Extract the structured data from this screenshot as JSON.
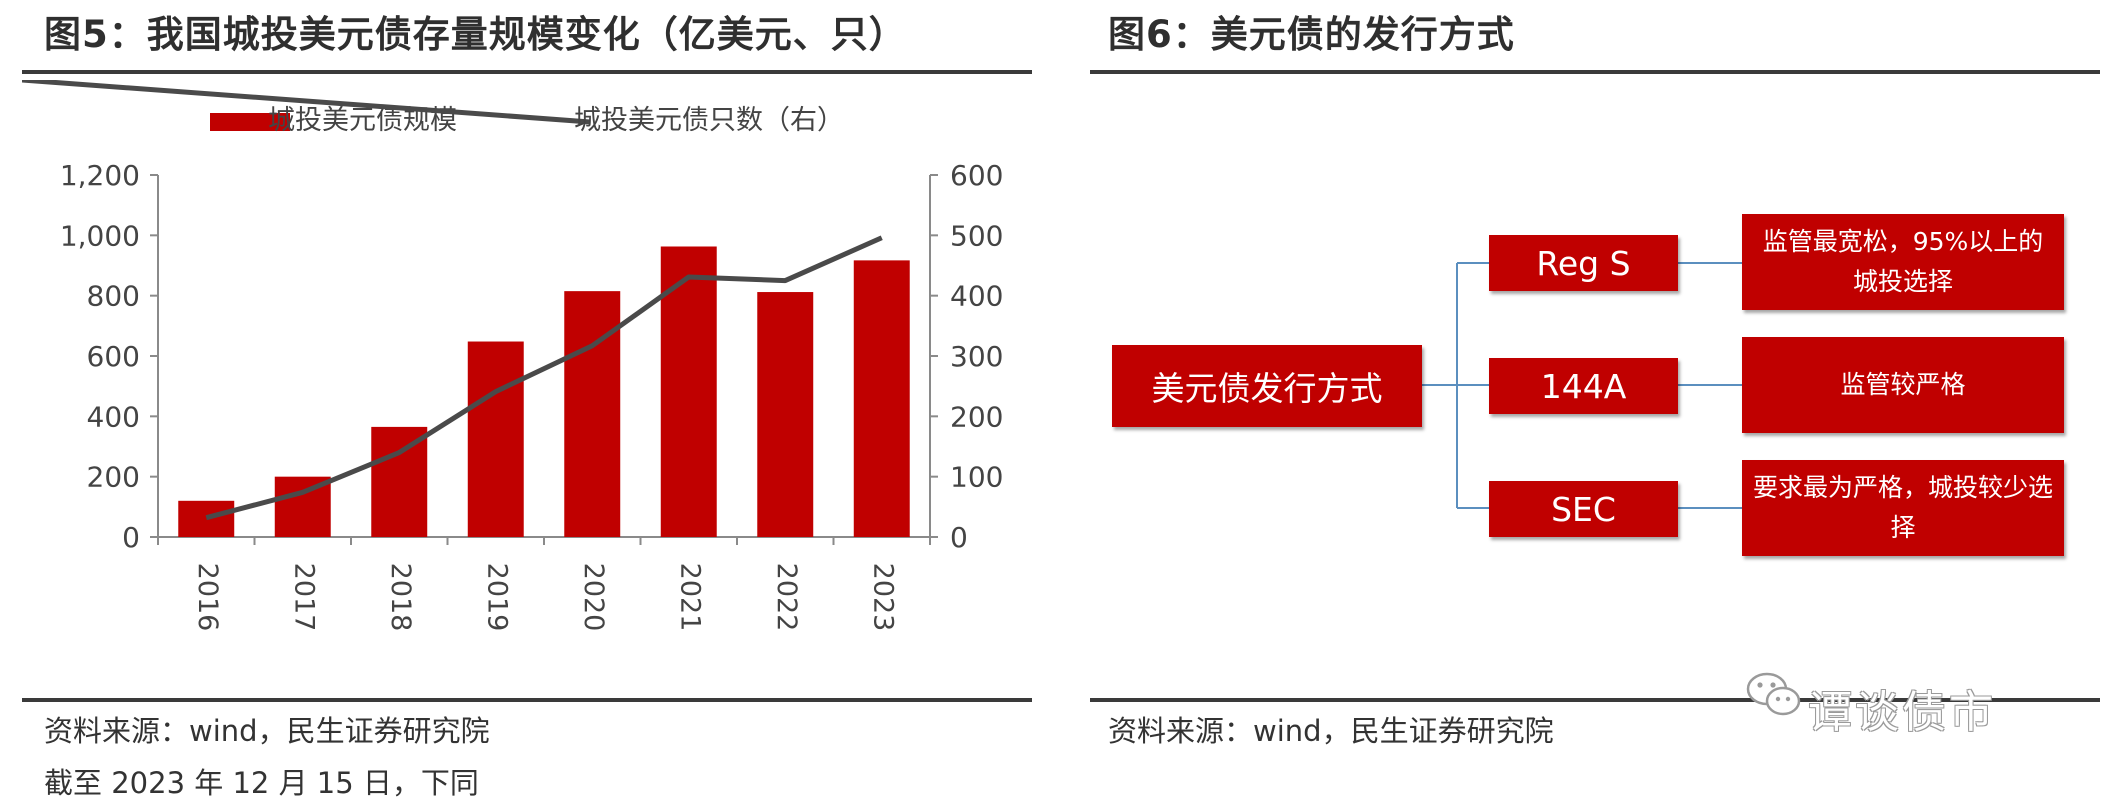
{
  "left": {
    "title": "图5：我国城投美元债存量规模变化（亿美元、只）",
    "source": "资料来源：wind，民生证券研究院",
    "note": "截至 2023 年 12 月 15 日，下同"
  },
  "right": {
    "title": "图6：美元债的发行方式",
    "source": "资料来源：wind，民生证券研究院",
    "watermark": "谭谈债市",
    "flow": {
      "root": "美元债发行方式",
      "items": [
        {
          "label": "Reg S",
          "desc": "监管最宽松，95%以上的城投选择"
        },
        {
          "label": "144A",
          "desc": "监管较严格"
        },
        {
          "label": "SEC",
          "desc": "要求最为严格，城投较少选择"
        }
      ]
    }
  },
  "chart_data": {
    "type": "bar",
    "categories": [
      "2016",
      "2017",
      "2018",
      "2019",
      "2020",
      "2021",
      "2022",
      "2023"
    ],
    "series": [
      {
        "name": "城投美元债规模",
        "type": "bar",
        "axis": "left",
        "color": "#c00000",
        "values": [
          120,
          200,
          365,
          648,
          815,
          963,
          812,
          917
        ]
      },
      {
        "name": "城投美元债只数（右）",
        "type": "line",
        "axis": "right",
        "color": "#4a4a4a",
        "values": [
          32,
          74,
          140,
          241,
          317,
          431,
          425,
          496
        ]
      }
    ],
    "ylim_left": [
      0,
      1200
    ],
    "ylim_right": [
      0,
      600
    ],
    "yticks_left": [
      "0",
      "200",
      "400",
      "600",
      "800",
      "1,000",
      "1,200"
    ],
    "yticks_right": [
      "0",
      "100",
      "200",
      "300",
      "400",
      "500",
      "600"
    ],
    "legend_position": "top",
    "grid": false
  }
}
